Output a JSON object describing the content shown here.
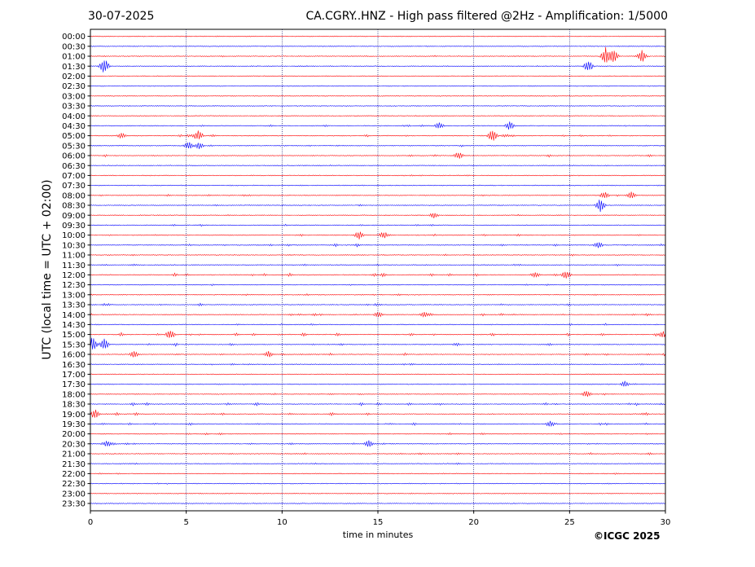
{
  "chart_data": {
    "type": "line",
    "date": "30-07-2025",
    "title": "CA.CGRY..HNZ - High pass filtered @2Hz - Amplification: 1/5000",
    "xlabel": "time in minutes",
    "ylabel": "UTC (local time = UTC + 02:00)",
    "xlim": [
      0,
      30
    ],
    "x_ticks": [
      "0",
      "5",
      "10",
      "15",
      "20",
      "25",
      "30"
    ],
    "x_gridlines": [
      5,
      10,
      15,
      20,
      25
    ],
    "grid": "vertical dotted",
    "trace_colors": [
      "#ff0000",
      "#0000ff"
    ],
    "rows": [
      "00:00",
      "00:30",
      "01:00",
      "01:30",
      "02:00",
      "02:30",
      "03:00",
      "03:30",
      "04:00",
      "04:30",
      "05:00",
      "05:30",
      "06:00",
      "06:30",
      "07:00",
      "07:30",
      "08:00",
      "08:30",
      "09:00",
      "09:30",
      "10:00",
      "10:30",
      "11:00",
      "11:30",
      "12:00",
      "12:30",
      "13:00",
      "13:30",
      "14:00",
      "14:30",
      "15:00",
      "15:30",
      "16:00",
      "16:30",
      "17:00",
      "17:30",
      "18:00",
      "18:30",
      "19:00",
      "19:30",
      "20:00",
      "20:30",
      "21:00",
      "21:30",
      "22:00",
      "22:30",
      "23:00",
      "23:30"
    ],
    "activity": [
      0.02,
      0.02,
      0.15,
      0.1,
      0.03,
      0.03,
      0.03,
      0.03,
      0.12,
      0.25,
      0.4,
      0.2,
      0.35,
      0.1,
      0.15,
      0.1,
      0.25,
      0.2,
      0.15,
      0.2,
      0.3,
      0.4,
      0.2,
      0.25,
      0.45,
      0.2,
      0.2,
      0.35,
      0.4,
      0.25,
      0.45,
      0.4,
      0.35,
      0.25,
      0.1,
      0.15,
      0.2,
      0.45,
      0.4,
      0.4,
      0.25,
      0.3,
      0.3,
      0.2,
      0.15,
      0.12,
      0.1,
      0.1
    ],
    "events": [
      {
        "row": "01:00",
        "minute": 26.9,
        "amp": 3.0
      },
      {
        "row": "01:00",
        "minute": 27.3,
        "amp": 2.6
      },
      {
        "row": "01:00",
        "minute": 28.8,
        "amp": 2.0
      },
      {
        "row": "01:30",
        "minute": 0.7,
        "amp": 2.5
      },
      {
        "row": "01:30",
        "minute": 26.0,
        "amp": 2.0
      },
      {
        "row": "04:30",
        "minute": 18.2,
        "amp": 1.2
      },
      {
        "row": "04:30",
        "minute": 21.9,
        "amp": 1.4
      },
      {
        "row": "05:00",
        "minute": 5.6,
        "amp": 1.8
      },
      {
        "row": "05:00",
        "minute": 21.0,
        "amp": 2.0
      },
      {
        "row": "05:00",
        "minute": 1.6,
        "amp": 1.0
      },
      {
        "row": "05:30",
        "minute": 5.1,
        "amp": 1.3
      },
      {
        "row": "05:30",
        "minute": 5.7,
        "amp": 1.1
      },
      {
        "row": "06:00",
        "minute": 19.2,
        "amp": 1.2
      },
      {
        "row": "08:00",
        "minute": 28.2,
        "amp": 1.2
      },
      {
        "row": "08:00",
        "minute": 26.8,
        "amp": 1.2
      },
      {
        "row": "08:30",
        "minute": 26.6,
        "amp": 2.2
      },
      {
        "row": "09:00",
        "minute": 17.9,
        "amp": 1.0
      },
      {
        "row": "10:00",
        "minute": 14.0,
        "amp": 1.3
      },
      {
        "row": "10:00",
        "minute": 15.3,
        "amp": 1.2
      },
      {
        "row": "10:30",
        "minute": 26.5,
        "amp": 1.1
      },
      {
        "row": "12:00",
        "minute": 24.8,
        "amp": 1.4
      },
      {
        "row": "12:00",
        "minute": 23.2,
        "amp": 1.0
      },
      {
        "row": "14:00",
        "minute": 17.4,
        "amp": 1.1
      },
      {
        "row": "14:00",
        "minute": 15.0,
        "amp": 1.0
      },
      {
        "row": "15:00",
        "minute": 4.2,
        "amp": 1.6
      },
      {
        "row": "15:00",
        "minute": 29.9,
        "amp": 1.0
      },
      {
        "row": "15:30",
        "minute": 0.1,
        "amp": 2.5
      },
      {
        "row": "15:30",
        "minute": 0.7,
        "amp": 2.0
      },
      {
        "row": "16:00",
        "minute": 2.3,
        "amp": 1.1
      },
      {
        "row": "16:00",
        "minute": 9.3,
        "amp": 1.0
      },
      {
        "row": "17:30",
        "minute": 27.9,
        "amp": 1.0
      },
      {
        "row": "18:00",
        "minute": 25.9,
        "amp": 1.2
      },
      {
        "row": "19:00",
        "minute": 0.2,
        "amp": 1.6
      },
      {
        "row": "19:30",
        "minute": 24.0,
        "amp": 1.0
      },
      {
        "row": "20:30",
        "minute": 14.5,
        "amp": 1.2
      },
      {
        "row": "20:30",
        "minute": 0.9,
        "amp": 1.1
      }
    ]
  },
  "footer": {
    "copyright": "©ICGC 2025"
  }
}
